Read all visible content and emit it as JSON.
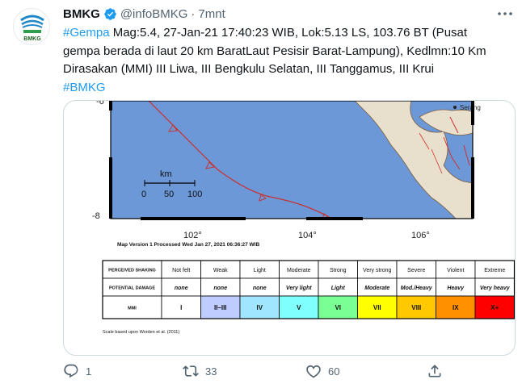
{
  "tweet": {
    "name": "BMKG",
    "handle": "@infoBMKG",
    "separator": "·",
    "time": "7mnt",
    "avatar_label": "BMKG",
    "text_hashtag": "#Gempa",
    "text_body": " Mag:5.4, 27-Jan-21 17:40:23 WIB, Lok:5.13 LS, 103.76 BT (Pusat gempa berada di laut 20 km BaratLaut Pesisir Barat-Lampung), Kedlmn:10 Km Dirasakan (MMI) III Liwa, III Bengkulu Selatan, III Tanggamus, III Krui",
    "text_hashtag2": "#BMKG"
  },
  "map": {
    "lat_top": "-6",
    "lat_bottom": "-8",
    "lon_labels": [
      "102°",
      "104°",
      "106°"
    ],
    "city": "Serang",
    "scale_title": "km",
    "scale_ticks": [
      "0",
      "50",
      "100"
    ],
    "version_text": "Map Version 1 Processed Wed Jan 27, 2021 06:36:27 WIB",
    "footnote": "Scale based upon Worden et al. (2011)"
  },
  "legend": {
    "row_labels": [
      "PERCEIVED SHAKING",
      "POTENTIAL DAMAGE",
      "MMI"
    ],
    "shaking": [
      "Not felt",
      "Weak",
      "Light",
      "Moderate",
      "Strong",
      "Very strong",
      "Severe",
      "Violent",
      "Extreme"
    ],
    "damage": [
      "none",
      "none",
      "none",
      "Very light",
      "Light",
      "Moderate",
      "Mod./Heavy",
      "Heavy",
      "Very heavy"
    ],
    "mmi": [
      "I",
      "II–III",
      "IV",
      "V",
      "VI",
      "VII",
      "VIII",
      "IX",
      "X+"
    ],
    "colors": [
      "#ffffff",
      "#bfccff",
      "#a0e6ff",
      "#80ffff",
      "#7aff93",
      "#ffff00",
      "#ffc800",
      "#ff9100",
      "#ff0000"
    ]
  },
  "actions": {
    "reply_count": "1",
    "retweet_count": "33",
    "like_count": "60"
  },
  "colors": {
    "accent": "#1d9bf0",
    "verified": "#1d9bf0",
    "sea": "#6c98d8",
    "land": "#e8e0cc"
  }
}
